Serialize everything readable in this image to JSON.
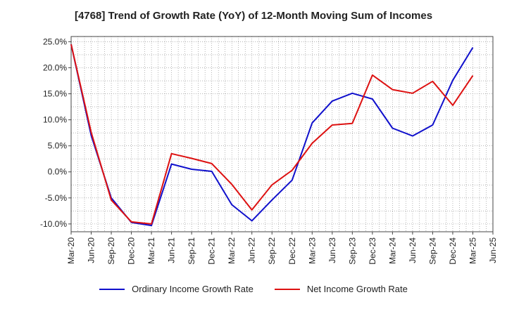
{
  "title": "[4768]  Trend of Growth Rate (YoY) of 12-Month Moving Sum of Incomes",
  "chart_data": {
    "type": "line",
    "title": "[4768]  Trend of Growth Rate (YoY) of 12-Month Moving Sum of Incomes",
    "xlabel": "",
    "ylabel": "",
    "ylim": [
      -11.5,
      26.0
    ],
    "yticks": [
      -10.0,
      -5.0,
      0.0,
      5.0,
      10.0,
      15.0,
      20.0,
      25.0
    ],
    "ytick_labels": [
      "-10.0%",
      "-5.0%",
      "0.0%",
      "5.0%",
      "10.0%",
      "15.0%",
      "20.0%",
      "25.0%"
    ],
    "categories": [
      "Mar-20",
      "Jun-20",
      "Sep-20",
      "Dec-20",
      "Mar-21",
      "Jun-21",
      "Sep-21",
      "Dec-21",
      "Mar-22",
      "Jun-22",
      "Sep-22",
      "Dec-22",
      "Mar-23",
      "Jun-23",
      "Sep-23",
      "Dec-23",
      "Mar-24",
      "Jun-24",
      "Sep-24",
      "Dec-24",
      "Mar-25",
      "Jun-25"
    ],
    "grid": true,
    "legend_position": "bottom",
    "series": [
      {
        "name": "Ordinary Income Growth Rate",
        "color": "#1010cc",
        "values": [
          24.5,
          7.0,
          -5.0,
          -9.7,
          -10.3,
          1.5,
          0.5,
          0.1,
          -6.3,
          -9.4,
          -5.4,
          -1.6,
          9.4,
          13.6,
          15.1,
          14.0,
          8.4,
          6.9,
          9.0,
          17.6,
          23.9,
          null
        ]
      },
      {
        "name": "Net Income Growth Rate",
        "color": "#dd1111",
        "values": [
          24.5,
          7.6,
          -5.4,
          -9.6,
          -10.0,
          3.5,
          2.6,
          1.6,
          -2.4,
          -7.3,
          -2.5,
          0.3,
          5.5,
          9.0,
          9.3,
          18.6,
          15.8,
          15.1,
          17.4,
          12.8,
          18.5,
          null
        ]
      }
    ]
  }
}
